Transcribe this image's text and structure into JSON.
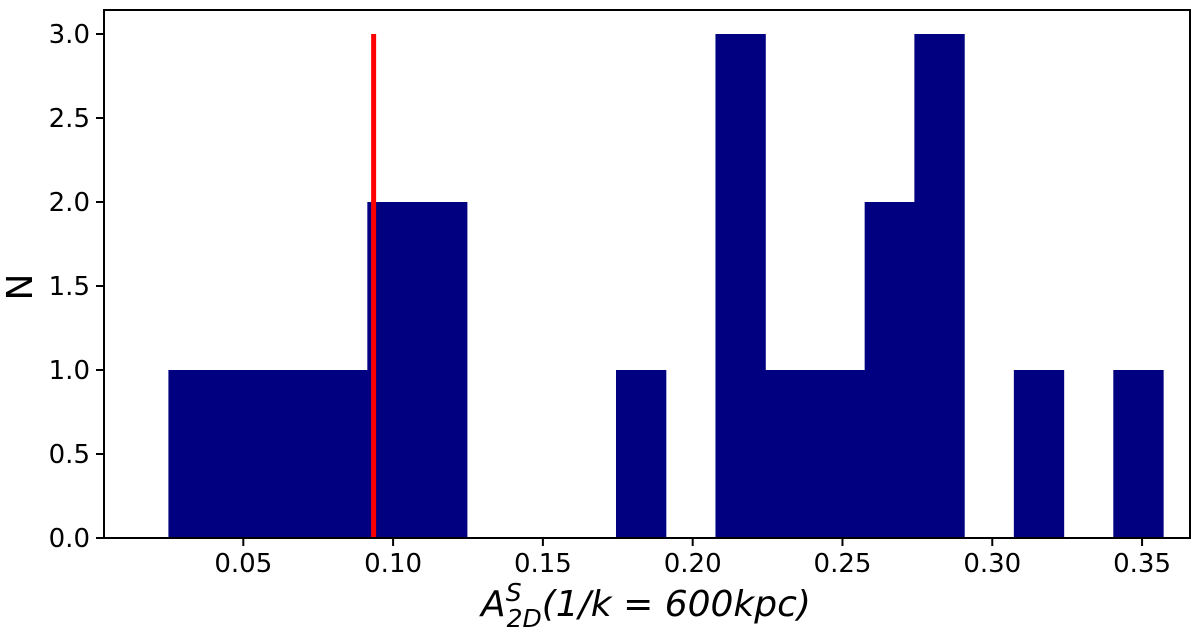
{
  "chart_data": {
    "type": "bar",
    "subtype": "histogram",
    "title": "",
    "ylabel": "N",
    "xlabel": {
      "base": "A",
      "superscript": "S",
      "subscript": "2D",
      "rest": "(1/k = 600kpc)"
    },
    "xlim": [
      0.0035,
      0.366
    ],
    "ylim": [
      0,
      3.0
    ],
    "xticks": [
      0.05,
      0.1,
      0.15,
      0.2,
      0.25,
      0.3,
      0.35
    ],
    "xtick_labels": [
      "0.05",
      "0.10",
      "0.15",
      "0.20",
      "0.25",
      "0.30",
      "0.35"
    ],
    "yticks": [
      0.0,
      0.5,
      1.0,
      1.5,
      2.0,
      2.5,
      3.0
    ],
    "ytick_labels": [
      "0.0",
      "0.5",
      "1.0",
      "1.5",
      "2.0",
      "2.5",
      "3.0"
    ],
    "bins": [
      {
        "x0": 0.025,
        "x1": 0.0416,
        "count": 1
      },
      {
        "x0": 0.0416,
        "x1": 0.0582,
        "count": 1
      },
      {
        "x0": 0.0582,
        "x1": 0.0748,
        "count": 1
      },
      {
        "x0": 0.0748,
        "x1": 0.0914,
        "count": 1
      },
      {
        "x0": 0.0914,
        "x1": 0.108,
        "count": 2
      },
      {
        "x0": 0.108,
        "x1": 0.1246,
        "count": 2
      },
      {
        "x0": 0.1246,
        "x1": 0.1412,
        "count": 0
      },
      {
        "x0": 0.1412,
        "x1": 0.1578,
        "count": 0
      },
      {
        "x0": 0.1578,
        "x1": 0.1744,
        "count": 0
      },
      {
        "x0": 0.1744,
        "x1": 0.191,
        "count": 1
      },
      {
        "x0": 0.191,
        "x1": 0.2076,
        "count": 0
      },
      {
        "x0": 0.2076,
        "x1": 0.2242,
        "count": 3
      },
      {
        "x0": 0.2242,
        "x1": 0.2408,
        "count": 1
      },
      {
        "x0": 0.2408,
        "x1": 0.2574,
        "count": 1
      },
      {
        "x0": 0.2574,
        "x1": 0.274,
        "count": 2
      },
      {
        "x0": 0.274,
        "x1": 0.2906,
        "count": 3
      },
      {
        "x0": 0.2906,
        "x1": 0.3072,
        "count": 0
      },
      {
        "x0": 0.3072,
        "x1": 0.3238,
        "count": 1
      },
      {
        "x0": 0.3238,
        "x1": 0.3404,
        "count": 0
      },
      {
        "x0": 0.3404,
        "x1": 0.357,
        "count": 1
      }
    ],
    "bar_color": "#000080",
    "reference_line": {
      "x": 0.0935,
      "y_top": 3.0,
      "color": "#ff0000"
    },
    "grid": false,
    "legend": "none"
  }
}
